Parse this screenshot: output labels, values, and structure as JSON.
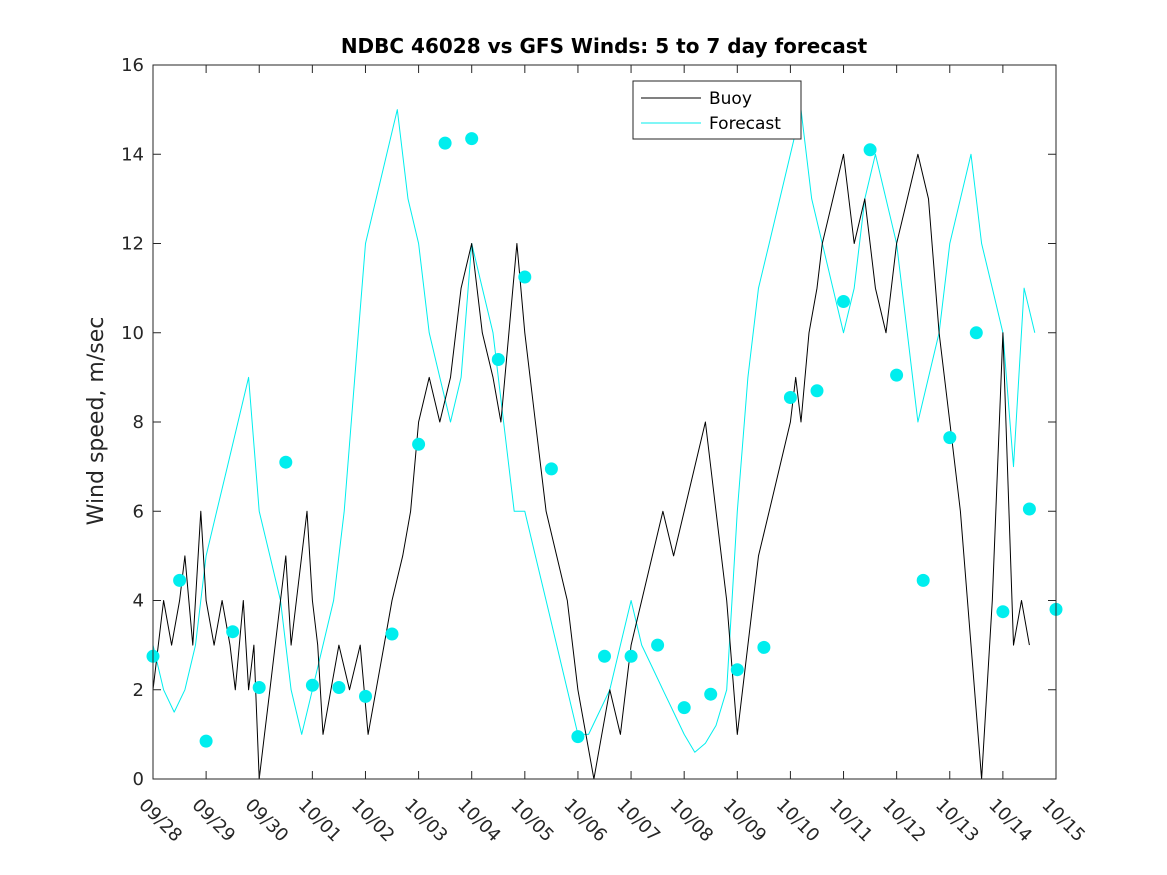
{
  "chart_data": {
    "type": "line",
    "title": "NDBC 46028 vs GFS Winds: 5 to 7 day forecast",
    "xlabel": "",
    "ylabel": "Wind speed, m/sec",
    "ylim": [
      0,
      16
    ],
    "xlim": [
      0,
      17
    ],
    "yticks": [
      0,
      2,
      4,
      6,
      8,
      10,
      12,
      14,
      16
    ],
    "x_tick_labels": [
      "09/28",
      "09/29",
      "09/30",
      "10/01",
      "10/02",
      "10/03",
      "10/04",
      "10/05",
      "10/06",
      "10/07",
      "10/08",
      "10/09",
      "10/10",
      "10/11",
      "10/12",
      "10/13",
      "10/14",
      "10/15"
    ],
    "legend": {
      "position": "top-center",
      "entries": [
        {
          "name": "Buoy",
          "color": "#000000"
        },
        {
          "name": "Forecast",
          "color": "#00eeee"
        }
      ]
    },
    "series": [
      {
        "name": "Buoy",
        "color": "#000000",
        "x": [
          0.0,
          0.1,
          0.2,
          0.35,
          0.5,
          0.6,
          0.75,
          0.9,
          1.0,
          1.15,
          1.3,
          1.45,
          1.55,
          1.7,
          1.8,
          1.9,
          2.0,
          2.1,
          2.2,
          2.3,
          2.4,
          2.5,
          2.6,
          2.7,
          2.8,
          2.9,
          3.0,
          3.1,
          3.2,
          3.35,
          3.5,
          3.7,
          3.9,
          4.05,
          4.2,
          4.35,
          4.5,
          4.7,
          4.85,
          5.0,
          5.2,
          5.4,
          5.6,
          5.8,
          6.0,
          6.2,
          6.4,
          6.55,
          6.7,
          6.85,
          7.0,
          7.2,
          7.4,
          7.6,
          7.8,
          8.0,
          8.15,
          8.3,
          8.45,
          8.6,
          8.8,
          9.0,
          9.2,
          9.4,
          9.6,
          9.8,
          10.0,
          10.2,
          10.4,
          10.6,
          10.8,
          11.0,
          11.2,
          11.4,
          11.6,
          11.8,
          12.0,
          12.1,
          12.2,
          12.35,
          12.5,
          12.6,
          12.8,
          13.0,
          13.2,
          13.4,
          13.6,
          13.8,
          14.0,
          14.2,
          14.4,
          14.6,
          14.8,
          15.0,
          15.2,
          15.4,
          15.6,
          15.8,
          16.0,
          16.2,
          16.35,
          16.5
        ],
        "y": [
          2,
          3,
          4,
          3,
          4,
          5,
          3,
          6,
          4,
          3,
          4,
          3,
          2,
          4,
          2,
          3,
          0,
          1,
          2,
          3,
          4,
          5,
          3,
          4,
          5,
          6,
          4,
          3,
          1,
          2,
          3,
          2,
          3,
          1,
          2,
          3,
          4,
          5,
          6,
          8,
          9,
          8,
          9,
          11,
          12,
          10,
          9,
          8,
          10,
          12,
          10,
          8,
          6,
          5,
          4,
          2,
          1,
          0,
          1,
          2,
          1,
          3,
          4,
          5,
          6,
          5,
          6,
          7,
          8,
          6,
          4,
          1,
          3,
          5,
          6,
          7,
          8,
          9,
          8,
          10,
          11,
          12,
          13,
          14,
          12,
          13,
          11,
          10,
          12,
          13,
          14,
          13,
          10,
          8,
          6,
          3,
          0,
          4,
          10,
          3,
          4,
          3
        ]
      },
      {
        "name": "Forecast",
        "color": "#00eeee",
        "x": [
          0.0,
          0.2,
          0.4,
          0.6,
          0.8,
          1.0,
          1.2,
          1.4,
          1.6,
          1.8,
          2.0,
          2.2,
          2.4,
          2.6,
          2.8,
          3.0,
          3.2,
          3.4,
          3.6,
          3.8,
          4.0,
          4.2,
          4.4,
          4.6,
          4.8,
          5.0,
          5.2,
          5.4,
          5.6,
          5.8,
          6.0,
          6.2,
          6.4,
          6.6,
          6.8,
          7.0,
          7.2,
          7.4,
          7.6,
          7.8,
          8.0,
          8.2,
          8.4,
          8.6,
          8.8,
          9.0,
          9.2,
          9.4,
          9.6,
          9.8,
          10.0,
          10.2,
          10.4,
          10.6,
          10.8,
          11.0,
          11.2,
          11.4,
          11.6,
          11.8,
          12.0,
          12.2,
          12.4,
          12.6,
          12.8,
          13.0,
          13.2,
          13.4,
          13.6,
          13.8,
          14.0,
          14.2,
          14.4,
          14.6,
          14.8,
          15.0,
          15.2,
          15.4,
          15.6,
          15.8,
          16.0,
          16.2,
          16.4,
          16.6
        ],
        "y": [
          3,
          2,
          1.5,
          2,
          3,
          5,
          6,
          7,
          8,
          9,
          6,
          5,
          4,
          2,
          1,
          2,
          3,
          4,
          6,
          9,
          12,
          13,
          14,
          15,
          13,
          12,
          10,
          9,
          8,
          9,
          12,
          11,
          10,
          8,
          6,
          6,
          5,
          4,
          3,
          2,
          1,
          1,
          1.5,
          2,
          3,
          4,
          3,
          2.5,
          2,
          1.5,
          1,
          0.6,
          0.8,
          1.2,
          2,
          6,
          9,
          11,
          12,
          13,
          14,
          15,
          13,
          12,
          11,
          10,
          11,
          13,
          14,
          13,
          12,
          10,
          8,
          9,
          10,
          12,
          13,
          14,
          12,
          11,
          10,
          7,
          11,
          10
        ]
      }
    ],
    "markers": {
      "name": "Forecast points",
      "color": "#00eeee",
      "x": [
        0.0,
        0.5,
        1.0,
        1.5,
        2.0,
        2.5,
        3.0,
        3.5,
        4.0,
        4.5,
        5.0,
        5.5,
        6.0,
        6.5,
        7.0,
        7.5,
        8.0,
        8.5,
        9.0,
        9.5,
        10.0,
        10.5,
        11.0,
        11.5,
        12.0,
        12.5,
        13.0,
        13.5,
        14.0,
        14.5,
        15.0,
        15.5,
        16.0,
        16.5,
        17.0
      ],
      "y": [
        2.75,
        4.45,
        0.85,
        3.3,
        2.05,
        7.1,
        2.1,
        2.05,
        1.85,
        3.25,
        7.5,
        14.25,
        14.35,
        9.4,
        11.25,
        6.95,
        0.95,
        2.75,
        2.75,
        3.0,
        1.6,
        1.9,
        2.45,
        2.95,
        8.55,
        8.7,
        10.7,
        14.1,
        9.05,
        4.45,
        7.65,
        10.0,
        3.75,
        6.05,
        3.8
      ]
    }
  }
}
